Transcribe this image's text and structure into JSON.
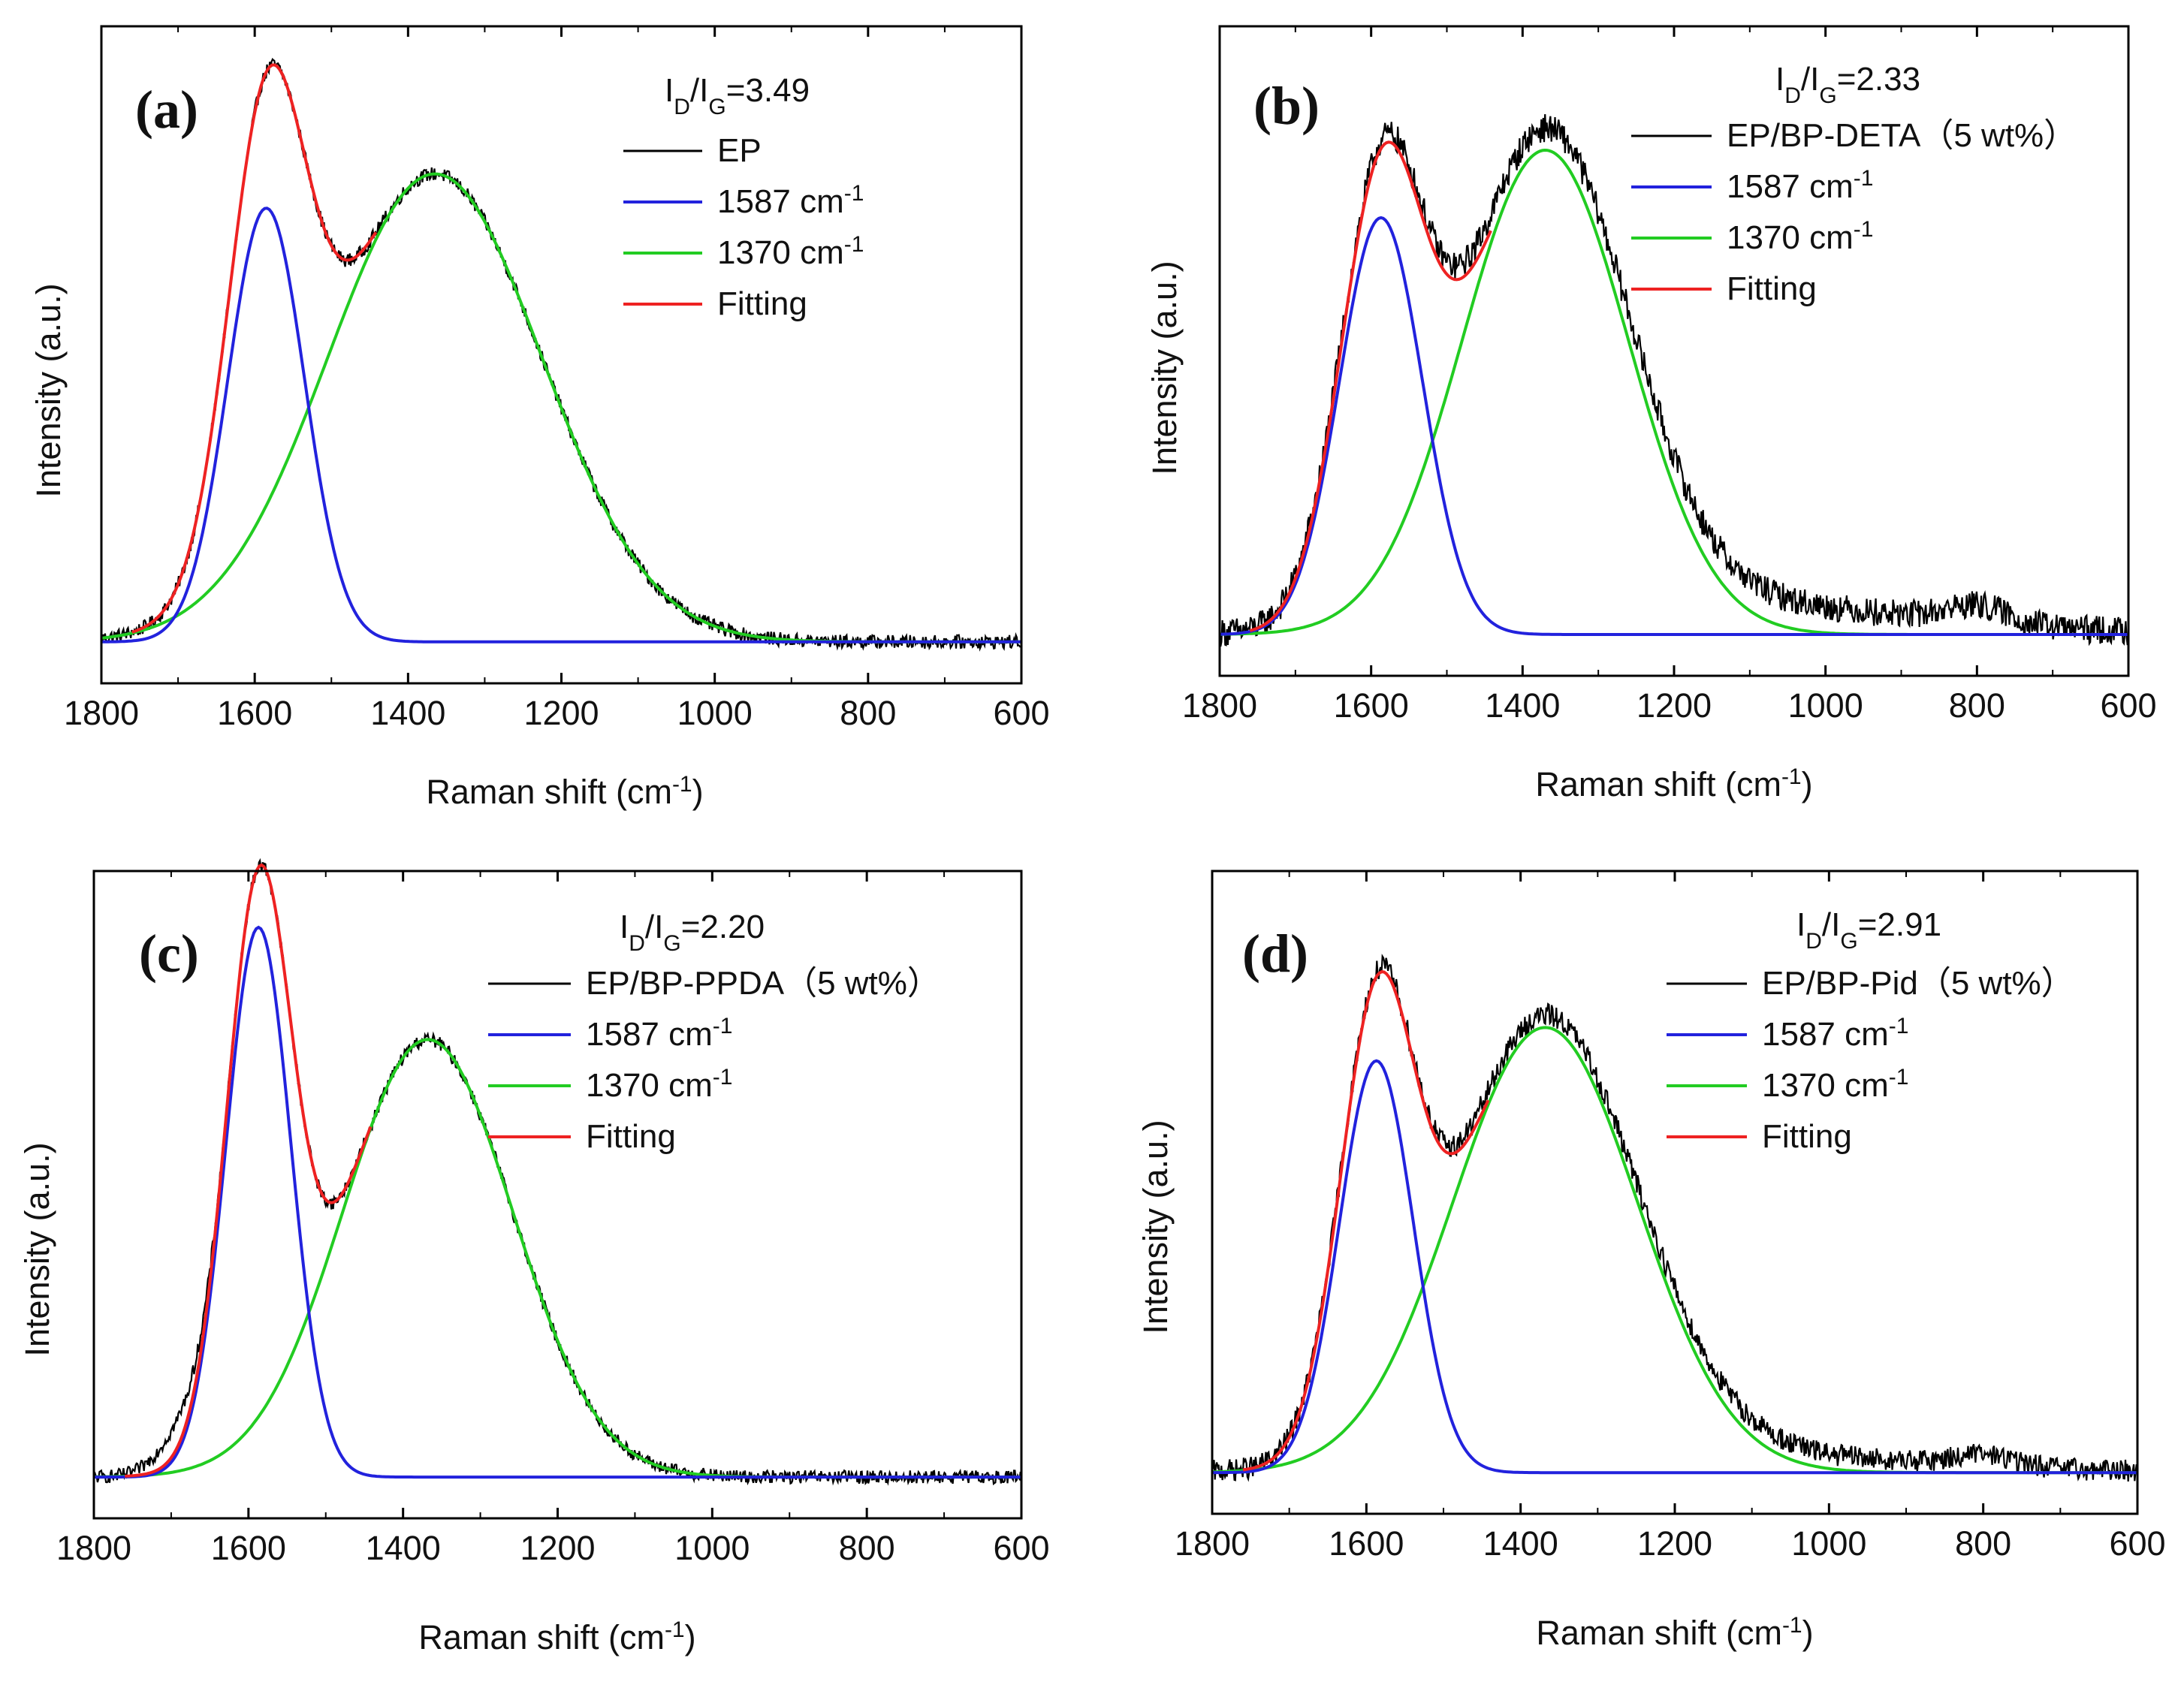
{
  "chart_data": [
    {
      "type": "line",
      "panel_label": "(a)",
      "ratio": {
        "prefix": "I",
        "sub1": "D",
        "slash": "/I",
        "sub2": "G",
        "value": "=3.49"
      },
      "title": "",
      "xlabel": "Raman shift (cm",
      "xlabel_sup": "-1",
      "xlabel_close": ")",
      "ylabel": "Intensity (a.u.)",
      "xlim": [
        1800,
        600
      ],
      "ylim": [
        0,
        1
      ],
      "xticks": [
        "1800",
        "1600",
        "1400",
        "1200",
        "1000",
        "800",
        "600"
      ],
      "xtick_values": [
        1800,
        1600,
        1400,
        1200,
        1000,
        800,
        600
      ],
      "legend": [
        {
          "label": "EP",
          "sup": "",
          "color": "#000000"
        },
        {
          "label": "1587 cm",
          "sup": "-1",
          "color": "#2222dd"
        },
        {
          "label": "1370 cm",
          "sup": "-1",
          "color": "#22cc22"
        },
        {
          "label": "Fitting",
          "sup": "",
          "color": "#ee2222"
        }
      ],
      "model": {
        "baseline": 0.02,
        "g_peak": {
          "center": 1585,
          "sigma": 50,
          "height": 0.76
        },
        "d_peak": {
          "center": 1365,
          "sigma": 140,
          "height": 0.82
        },
        "noise": 0.012,
        "shoulder": {
          "center": 1700,
          "sigma": 25,
          "height": 0.0
        },
        "tail": 0.0
      }
    },
    {
      "type": "line",
      "panel_label": "(b)",
      "ratio": {
        "prefix": "I",
        "sub1": "D",
        "slash": "/I",
        "sub2": "G",
        "value": "=2.33"
      },
      "title": "",
      "xlabel": "Raman shift (cm",
      "xlabel_sup": "-1",
      "xlabel_close": ")",
      "ylabel": "Intensity (a.u.)",
      "xlim": [
        1800,
        600
      ],
      "ylim": [
        0,
        1
      ],
      "xticks": [
        "1800",
        "1600",
        "1400",
        "1200",
        "1000",
        "800",
        "600"
      ],
      "xtick_values": [
        1800,
        1600,
        1400,
        1200,
        1000,
        800,
        600
      ],
      "legend": [
        {
          "label": "EP/BP-DETA（5 wt%）",
          "sup": "",
          "color": "#000000"
        },
        {
          "label": "1587 cm",
          "sup": "-1",
          "color": "#2222dd"
        },
        {
          "label": "1370 cm",
          "sup": "-1",
          "color": "#22cc22"
        },
        {
          "label": "Fitting",
          "sup": "",
          "color": "#ee2222"
        }
      ],
      "model": {
        "baseline": 0.02,
        "g_peak": {
          "center": 1587,
          "sigma": 55,
          "height": 0.74
        },
        "d_peak": {
          "center": 1370,
          "sigma": 110,
          "height": 0.86
        },
        "noise": 0.025,
        "shoulder": {
          "center": 800,
          "sigma": 40,
          "height": 0.03
        },
        "tail": 0.07
      }
    },
    {
      "type": "line",
      "panel_label": "(c)",
      "ratio": {
        "prefix": "I",
        "sub1": "D",
        "slash": "/I",
        "sub2": "G",
        "value": "=2.20"
      },
      "title": "",
      "xlabel": "Raman shift (cm",
      "xlabel_sup": "-1",
      "xlabel_close": ")",
      "ylabel": "Intensity (a.u.)",
      "xlim": [
        1800,
        600
      ],
      "ylim": [
        0,
        1
      ],
      "xticks": [
        "1800",
        "1600",
        "1400",
        "1200",
        "1000",
        "800",
        "600"
      ],
      "xtick_values": [
        1800,
        1600,
        1400,
        1200,
        1000,
        800,
        600
      ],
      "legend": [
        {
          "label": "EP/BP-PPDA（5 wt%）",
          "sup": "",
          "color": "#000000"
        },
        {
          "label": "1587 cm",
          "sup": "-1",
          "color": "#2222dd"
        },
        {
          "label": "1370 cm",
          "sup": "-1",
          "color": "#22cc22"
        },
        {
          "label": "Fitting",
          "sup": "",
          "color": "#ee2222"
        }
      ],
      "model": {
        "baseline": 0.02,
        "g_peak": {
          "center": 1587,
          "sigma": 42,
          "height": 0.98
        },
        "d_peak": {
          "center": 1368,
          "sigma": 110,
          "height": 0.78
        },
        "noise": 0.012,
        "shoulder": {
          "center": 1690,
          "sigma": 30,
          "height": 0.05
        },
        "tail": 0.0
      }
    },
    {
      "type": "line",
      "panel_label": "(d)",
      "ratio": {
        "prefix": "I",
        "sub1": "D",
        "slash": "/I",
        "sub2": "G",
        "value": "=2.91"
      },
      "title": "",
      "xlabel": "Raman shift (cm",
      "xlabel_sup": "-1",
      "xlabel_close": ")",
      "ylabel": "Intensity (a.u.)",
      "xlim": [
        1800,
        600
      ],
      "ylim": [
        0,
        1
      ],
      "xticks": [
        "1800",
        "1600",
        "1400",
        "1200",
        "1000",
        "800",
        "600"
      ],
      "xtick_values": [
        1800,
        1600,
        1400,
        1200,
        1000,
        800,
        600
      ],
      "legend": [
        {
          "label": "EP/BP-Pid（5 wt%）",
          "sup": "",
          "color": "#000000"
        },
        {
          "label": "1587 cm",
          "sup": "-1",
          "color": "#2222dd"
        },
        {
          "label": "1370 cm",
          "sup": "-1",
          "color": "#22cc22"
        },
        {
          "label": "Fitting",
          "sup": "",
          "color": "#ee2222"
        }
      ],
      "model": {
        "baseline": 0.02,
        "g_peak": {
          "center": 1587,
          "sigma": 48,
          "height": 0.74
        },
        "d_peak": {
          "center": 1368,
          "sigma": 120,
          "height": 0.8
        },
        "noise": 0.02,
        "shoulder": {
          "center": 800,
          "sigma": 40,
          "height": 0.02
        },
        "tail": 0.04
      }
    }
  ]
}
